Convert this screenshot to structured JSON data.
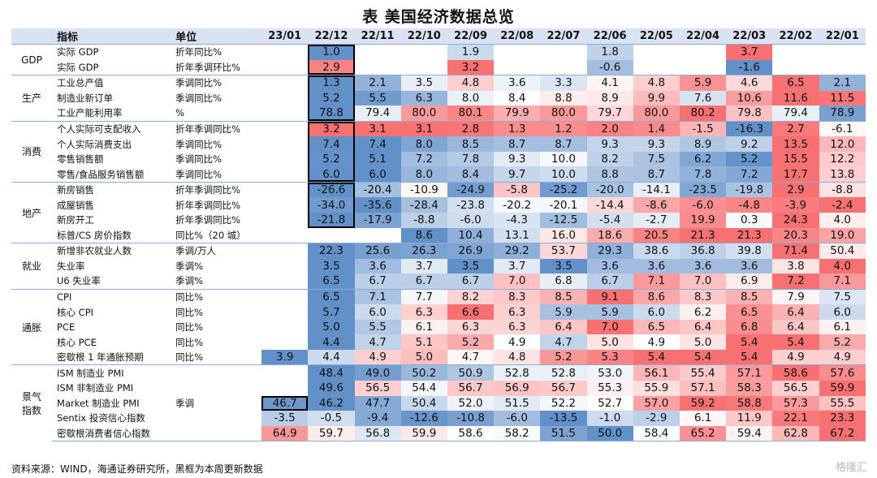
{
  "title": "表 美国经济数据总览",
  "source": "资料来源：WIND，海通证券研究所，黑框为本周更新数据",
  "watermark": "格隆汇",
  "colors": {
    "header_bg": "#dae3f3",
    "high": "#f8696b",
    "low": "#5a8ac6",
    "neutral": "#ffffff",
    "box": "#000000"
  },
  "chart_data": {
    "type": "heatmap",
    "title": "表 美国经济数据总览",
    "columns": [
      "指标",
      "单位",
      "23/01",
      "22/12",
      "22/11",
      "22/10",
      "22/09",
      "22/08",
      "22/07",
      "22/06",
      "22/05",
      "22/04",
      "22/03",
      "22/02",
      "22/01"
    ],
    "months": [
      "23/01",
      "22/12",
      "22/11",
      "22/10",
      "22/09",
      "22/08",
      "22/07",
      "22/06",
      "22/05",
      "22/04",
      "22/03",
      "22/02",
      "22/01"
    ],
    "groups": [
      {
        "name": "GDP",
        "rows": [
          {
            "name": "实际 GDP",
            "unit": "折年同比%",
            "values": [
              null,
              "1.0",
              null,
              null,
              "1.9",
              null,
              null,
              "1.8",
              null,
              null,
              "3.7",
              null,
              null
            ],
            "box": [
              1
            ]
          },
          {
            "name": "实际 GDP",
            "unit": "折年季调环比%",
            "values": [
              null,
              "2.9",
              null,
              null,
              "3.2",
              null,
              null,
              "-0.6",
              null,
              null,
              "-1.6",
              null,
              null
            ],
            "box": [
              1
            ]
          }
        ]
      },
      {
        "name": "生产",
        "rows": [
          {
            "name": "工业总产值",
            "unit": "季调同比%",
            "values": [
              null,
              "1.3",
              "2.1",
              "3.5",
              "4.8",
              "3.6",
              "3.3",
              "4.1",
              "4.8",
              "5.9",
              "4.6",
              "6.5",
              "2.1"
            ],
            "box": [
              1
            ]
          },
          {
            "name": "制造业新订单",
            "unit": "季调同比%",
            "values": [
              null,
              "5.2",
              "5.5",
              "6.3",
              "8.0",
              "8.4",
              "8.8",
              "8.9",
              "9.9",
              "7.6",
              "10.6",
              "11.6",
              "11.5"
            ],
            "box": [
              1
            ]
          },
          {
            "name": "工业产能利用率",
            "unit": "%",
            "values": [
              null,
              "78.8",
              "79.4",
              "80.0",
              "80.1",
              "79.9",
              "80.0",
              "79.7",
              "80.0",
              "80.2",
              "79.8",
              "79.4",
              "78.9"
            ],
            "box": [
              1
            ]
          }
        ]
      },
      {
        "name": "消费",
        "rows": [
          {
            "name": "个人实际可支配收入",
            "unit": "折年季调同比%",
            "values": [
              null,
              "3.2",
              "3.1",
              "3.1",
              "2.8",
              "1.3",
              "1.2",
              "2.0",
              "1.4",
              "-1.5",
              "-16.3",
              "2.7",
              "-6.1"
            ],
            "box": [
              1
            ]
          },
          {
            "name": "个人实际消费支出",
            "unit": "季调同比%",
            "values": [
              null,
              "7.4",
              "7.4",
              "8.0",
              "8.5",
              "8.7",
              "8.7",
              "9.3",
              "9.3",
              "8.9",
              "9.2",
              "13.5",
              "12.0"
            ],
            "box": [
              1
            ]
          },
          {
            "name": "零售销售额",
            "unit": "季调同比%",
            "values": [
              null,
              "5.2",
              "5.1",
              "7.2",
              "7.8",
              "9.3",
              "10.0",
              "8.2",
              "7.5",
              "6.2",
              "5.2",
              "15.5",
              "12.2"
            ],
            "box": [
              1
            ]
          },
          {
            "name": "零售/食品服务销售额",
            "unit": "季调同比%",
            "values": [
              null,
              "6.0",
              "6.0",
              "8.0",
              "8.4",
              "9.7",
              "10.0",
              "8.8",
              "8.7",
              "7.8",
              "7.2",
              "17.7",
              "13.8"
            ],
            "box": [
              1
            ]
          }
        ]
      },
      {
        "name": "地产",
        "rows": [
          {
            "name": "新房销售",
            "unit": "折年季调同比%",
            "values": [
              null,
              "-26.6",
              "-20.4",
              "-10.9",
              "-24.9",
              "-5.8",
              "-25.2",
              "-20.0",
              "-14.1",
              "-23.5",
              "-19.8",
              "2.9",
              "-8.8"
            ],
            "box": [
              1
            ]
          },
          {
            "name": "成屋销售",
            "unit": "折年季调同比%",
            "values": [
              null,
              "-34.0",
              "-35.6",
              "-28.4",
              "-23.8",
              "-20.2",
              "-20.1",
              "-14.4",
              "-8.6",
              "-6.0",
              "-4.8",
              "-3.9",
              "-2.4"
            ],
            "box": [
              1
            ]
          },
          {
            "name": "新房开工",
            "unit": "折年季调同比%",
            "values": [
              null,
              "-21.8",
              "-17.9",
              "-8.8",
              "-6.0",
              "-4.3",
              "-12.5",
              "-5.4",
              "-2.7",
              "19.9",
              "0.3",
              "24.3",
              "4.0"
            ],
            "box": [
              1
            ]
          },
          {
            "name": "标普/CS 房价指数",
            "unit": "同比%（20 城）",
            "values": [
              null,
              null,
              null,
              "8.6",
              "10.4",
              "13.1",
              "16.0",
              "18.6",
              "20.5",
              "21.3",
              "21.3",
              "20.3",
              "19.0"
            ],
            "box": []
          }
        ]
      },
      {
        "name": "就业",
        "rows": [
          {
            "name": "新增非农就业人数",
            "unit": "季调/万人",
            "values": [
              null,
              "22.3",
              "25.6",
              "26.3",
              "26.9",
              "29.2",
              "53.7",
              "29.3",
              "38.6",
              "36.8",
              "39.8",
              "71.4",
              "50.4"
            ],
            "box": []
          },
          {
            "name": "失业率",
            "unit": "季调%",
            "values": [
              null,
              "3.5",
              "3.6",
              "3.7",
              "3.5",
              "3.7",
              "3.5",
              "3.6",
              "3.6",
              "3.6",
              "3.6",
              "3.8",
              "4.0"
            ],
            "box": []
          },
          {
            "name": "U6 失业率",
            "unit": "季调%",
            "values": [
              null,
              "6.5",
              "6.7",
              "6.7",
              "6.7",
              "7.0",
              "6.8",
              "6.7",
              "7.1",
              "7.0",
              "6.9",
              "7.2",
              "7.1"
            ],
            "box": []
          }
        ]
      },
      {
        "name": "通胀",
        "rows": [
          {
            "name": "CPI",
            "unit": "同比%",
            "values": [
              null,
              "6.5",
              "7.1",
              "7.7",
              "8.2",
              "8.3",
              "8.5",
              "9.1",
              "8.6",
              "8.3",
              "8.5",
              "7.9",
              "7.5"
            ],
            "box": []
          },
          {
            "name": "核心 CPI",
            "unit": "同比%",
            "values": [
              null,
              "5.7",
              "6.0",
              "6.3",
              "6.6",
              "6.3",
              "5.9",
              "5.9",
              "6.0",
              "6.2",
              "6.5",
              "6.4",
              "6.0"
            ],
            "box": []
          },
          {
            "name": "PCE",
            "unit": "同比%",
            "values": [
              null,
              "5.0",
              "5.5",
              "6.1",
              "6.3",
              "6.3",
              "6.4",
              "7.0",
              "6.5",
              "6.4",
              "6.8",
              "6.4",
              "6.1"
            ],
            "box": []
          },
          {
            "name": "核心 PCE",
            "unit": "同比%",
            "values": [
              null,
              "4.4",
              "4.7",
              "5.1",
              "5.2",
              "4.9",
              "4.7",
              "5.0",
              "4.9",
              "5.0",
              "5.4",
              "5.4",
              "5.2"
            ],
            "box": []
          },
          {
            "name": "密歇根 1 年通胀预期",
            "unit": "同比%",
            "values": [
              "3.9",
              "4.4",
              "4.9",
              "5.0",
              "4.7",
              "4.8",
              "5.2",
              "5.3",
              "5.4",
              "5.4",
              "5.4",
              "4.9",
              "4.9"
            ],
            "box": []
          }
        ]
      },
      {
        "name": "景气指数",
        "rows": [
          {
            "name": "ISM 制造业 PMI",
            "unit": "",
            "values": [
              null,
              "48.4",
              "49.0",
              "50.2",
              "50.9",
              "52.8",
              "52.8",
              "53.0",
              "56.1",
              "55.4",
              "57.1",
              "58.6",
              "57.6"
            ],
            "box": []
          },
          {
            "name": "ISM 非制造业 PMI",
            "unit": "",
            "values": [
              null,
              "49.6",
              "56.5",
              "54.4",
              "56.7",
              "56.9",
              "56.7",
              "55.3",
              "55.9",
              "57.1",
              "58.3",
              "56.5",
              "59.9"
            ],
            "box": []
          },
          {
            "name": "Market 制造业 PMI",
            "unit": "季调",
            "values": [
              "46.7",
              "46.2",
              "47.7",
              "50.4",
              "52.0",
              "51.5",
              "52.2",
              "52.7",
              "57.0",
              "59.2",
              "58.8",
              "57.3",
              "55.5"
            ],
            "box": [
              0
            ]
          },
          {
            "name": "Sentix 投资信心指数",
            "unit": "",
            "values": [
              "-3.5",
              "-0.5",
              "-9.4",
              "-12.6",
              "-10.8",
              "-6.0",
              "-13.5",
              "-1.0",
              "-2.9",
              "6.1",
              "11.9",
              "22.1",
              "23.3"
            ],
            "box": []
          },
          {
            "name": "密歇根消费者信心指数",
            "unit": "",
            "values": [
              "64.9",
              "59.7",
              "56.8",
              "59.9",
              "58.6",
              "58.2",
              "51.5",
              "50.0",
              "58.4",
              "65.2",
              "59.4",
              "62.8",
              "67.2"
            ],
            "box": []
          }
        ]
      }
    ]
  }
}
